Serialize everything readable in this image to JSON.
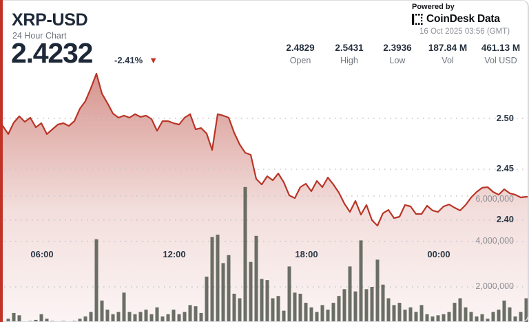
{
  "header": {
    "symbol": "XRP-USD",
    "subtitle": "24 Hour Chart",
    "price": "2.4232",
    "change": "-2.41%",
    "stats": [
      {
        "value": "2.4829",
        "label": "Open"
      },
      {
        "value": "2.5431",
        "label": "High"
      },
      {
        "value": "2.3936",
        "label": "Low"
      },
      {
        "value": "187.84 M",
        "label": "Vol"
      },
      {
        "value": "461.13 M",
        "label": "Vol USD"
      }
    ],
    "powered_by": "Powered by",
    "brand": "CoinDesk Data",
    "timestamp": "16 Oct 2025 03:56 (GMT)"
  },
  "chart_data": {
    "type": "area",
    "title": "XRP-USD 24 Hour Chart",
    "x_labels": [
      "06:00",
      "12:00",
      "18:00",
      "00:00"
    ],
    "price_axis": {
      "labels": [
        "2.50",
        "2.45",
        "2.40"
      ],
      "ticks": [
        2.5,
        2.45,
        2.4
      ]
    },
    "volume_axis": {
      "labels": [
        "6,000,000",
        "4,000,000",
        "2,000,000"
      ],
      "ticks_millions": [
        6,
        4,
        2
      ]
    },
    "interval_minutes": 15,
    "series": [
      {
        "name": "price",
        "values": [
          2.4926,
          2.4845,
          2.4959,
          2.502,
          2.4966,
          2.5007,
          2.4912,
          2.4953,
          2.4845,
          2.4892,
          2.4939,
          2.4953,
          2.4926,
          2.4973,
          2.5095,
          2.5169,
          2.5297,
          2.5439,
          2.5243,
          2.5149,
          2.5047,
          2.5007,
          2.5027,
          2.5007,
          2.5041,
          2.5014,
          2.5027,
          2.4993,
          2.4878,
          2.4973,
          2.4973,
          2.4953,
          2.4939,
          2.5007,
          2.5041,
          2.4892,
          2.4905,
          2.4851,
          2.4689,
          2.5041,
          2.5027,
          2.5007,
          2.4858,
          2.4743,
          2.4662,
          2.4642,
          2.4405,
          2.4351,
          2.4432,
          2.4392,
          2.4459,
          2.4372,
          2.4243,
          2.4216,
          2.4324,
          2.4358,
          2.4284,
          2.4385,
          2.4324,
          2.4419,
          2.4351,
          2.427,
          2.4162,
          2.4081,
          2.4189,
          2.4054,
          2.4149,
          2.4,
          2.3946,
          2.4068,
          2.4101,
          2.402,
          2.4034,
          2.4149,
          2.4135,
          2.4061,
          2.4061,
          2.4142,
          2.4095,
          2.4081,
          2.4135,
          2.4155,
          2.4122,
          2.4095,
          2.4149,
          2.4223,
          2.4277,
          2.4318,
          2.4324,
          2.4277,
          2.425,
          2.4304,
          2.4264,
          2.425,
          2.4223,
          2.423
        ]
      },
      {
        "name": "volume_millions",
        "values": [
          0.35,
          0.6,
          0.85,
          0.75,
          0.4,
          0.5,
          0.55,
          0.8,
          0.6,
          0.5,
          0.45,
          0.5,
          0.4,
          0.5,
          0.6,
          0.7,
          0.9,
          4.1,
          1.4,
          1.0,
          0.8,
          0.9,
          1.75,
          0.9,
          0.8,
          0.9,
          1.0,
          0.8,
          1.1,
          0.7,
          0.8,
          1.0,
          0.8,
          0.9,
          1.2,
          1.15,
          0.85,
          2.45,
          4.2,
          4.3,
          3.05,
          3.4,
          1.7,
          1.5,
          6.4,
          3.1,
          4.25,
          2.35,
          2.3,
          1.5,
          1.6,
          0.95,
          2.9,
          1.75,
          1.7,
          1.3,
          1.1,
          0.9,
          1.2,
          1.0,
          1.3,
          1.6,
          1.9,
          2.9,
          1.8,
          4.05,
          1.9,
          2.0,
          3.2,
          2.1,
          1.5,
          1.2,
          1.3,
          1.0,
          1.1,
          0.9,
          1.2,
          0.8,
          0.7,
          0.75,
          0.8,
          0.9,
          1.3,
          1.5,
          1.1,
          0.9,
          0.7,
          0.8,
          0.6,
          0.9,
          1.0,
          1.4,
          1.1,
          0.7,
          0.9,
          1.5
        ]
      }
    ],
    "colors": {
      "line": "#b93527",
      "area_top": "rgba(178,52,40,0.52)",
      "area_bottom": "rgba(178,52,40,0.05)",
      "volume_bar": "#5d6359",
      "grid": "#c6c6c9",
      "accent_stripe": "#c23327",
      "text_dark": "#1d2838",
      "text_gray": "#70767f"
    }
  }
}
